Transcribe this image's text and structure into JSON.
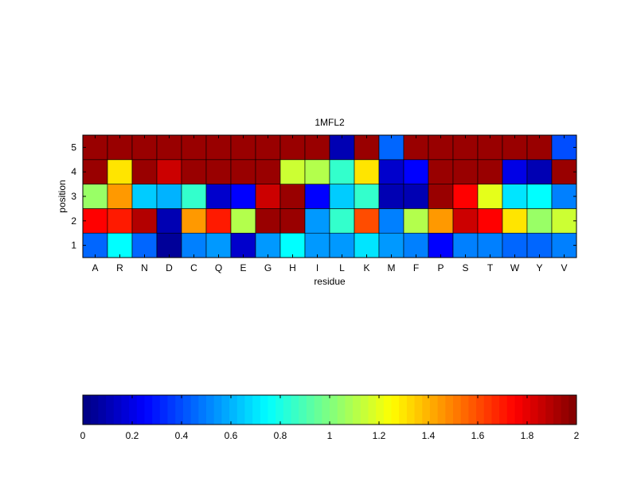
{
  "chart_data": {
    "type": "heatmap",
    "title": "1MFL2",
    "xlabel": "residue",
    "ylabel": "position",
    "categories": [
      "A",
      "R",
      "N",
      "D",
      "C",
      "Q",
      "E",
      "G",
      "H",
      "I",
      "L",
      "K",
      "M",
      "F",
      "P",
      "S",
      "T",
      "W",
      "Y",
      "V"
    ],
    "rows": [
      "1",
      "2",
      "3",
      "4",
      "5"
    ],
    "values": [
      [
        0.45,
        0.75,
        0.45,
        0.05,
        0.5,
        0.55,
        0.15,
        0.55,
        0.75,
        0.55,
        0.55,
        0.7,
        0.55,
        0.5,
        0.25,
        0.5,
        0.5,
        0.45,
        0.45,
        0.5
      ],
      [
        1.75,
        1.7,
        1.9,
        0.1,
        1.45,
        1.7,
        1.1,
        1.95,
        1.95,
        0.55,
        0.85,
        1.6,
        0.5,
        1.1,
        1.45,
        1.85,
        1.75,
        1.3,
        1.05,
        1.15
      ],
      [
        1.05,
        1.45,
        0.65,
        0.6,
        0.85,
        0.15,
        0.25,
        1.85,
        1.95,
        0.25,
        0.65,
        0.85,
        0.1,
        0.1,
        1.95,
        1.75,
        1.2,
        0.7,
        0.75,
        0.5
      ],
      [
        1.95,
        1.3,
        1.95,
        1.85,
        1.95,
        1.95,
        1.95,
        1.95,
        1.15,
        1.1,
        0.85,
        1.3,
        0.15,
        0.25,
        1.95,
        1.95,
        1.95,
        0.2,
        0.1,
        1.95
      ],
      [
        1.95,
        1.95,
        1.95,
        1.95,
        1.95,
        1.95,
        1.95,
        1.95,
        1.95,
        1.95,
        0.1,
        1.95,
        0.45,
        1.95,
        1.95,
        1.95,
        1.95,
        1.95,
        1.95,
        0.4
      ]
    ],
    "clim": [
      0,
      2
    ],
    "colormap": "jet",
    "colorbar": {
      "ticks": [
        "0",
        "0.2",
        "0.4",
        "0.6",
        "0.8",
        "1",
        "1.2",
        "1.4",
        "1.6",
        "1.8",
        "2"
      ],
      "placement": "bottom"
    }
  }
}
